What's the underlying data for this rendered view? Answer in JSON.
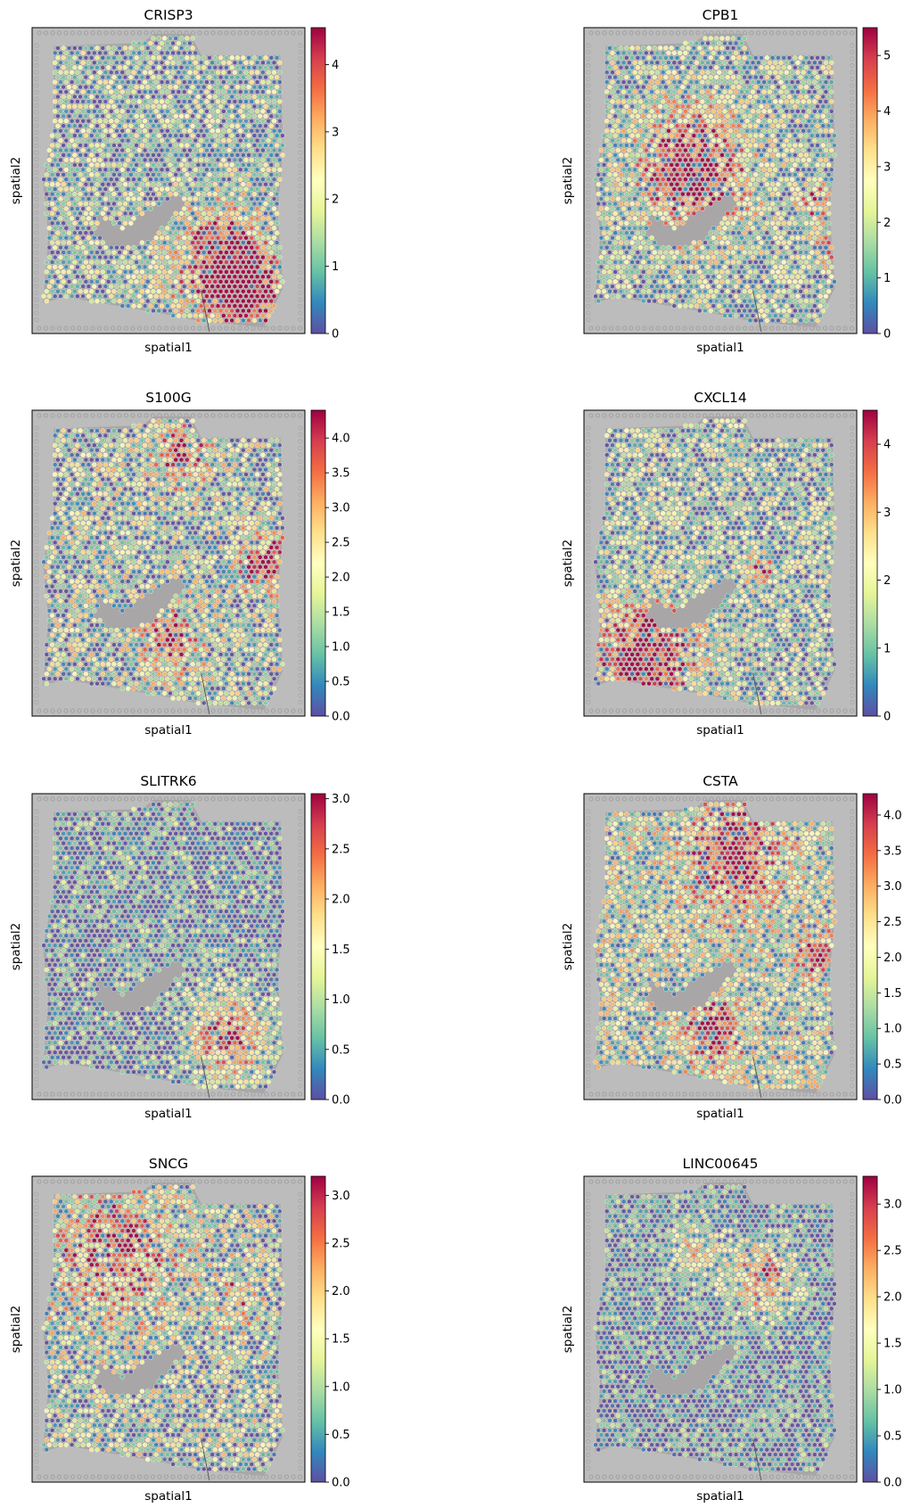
{
  "figure": {
    "colormap": "Spectral_r",
    "colormap_stops": [
      "#5e4fa2",
      "#3288bd",
      "#66c2a5",
      "#abdda4",
      "#e6f598",
      "#ffffbf",
      "#fee08b",
      "#fdae61",
      "#f46d43",
      "#d53e4f",
      "#9e0142"
    ],
    "background_color": "#bcbcbc",
    "spot_outline_color": "#f4f0d8"
  },
  "chart_data": [
    {
      "type": "heatmap",
      "title": "CRISP3",
      "xlabel": "spatial1",
      "ylabel": "spatial2",
      "colorbar_range": [
        0,
        4.55
      ],
      "colorbar_ticks": [
        "0",
        "1",
        "2",
        "3",
        "4"
      ],
      "colorbar_tick_values": [
        0,
        1,
        2,
        3,
        4
      ],
      "pattern": "high expression in lower-right tissue region; low-moderate elsewhere"
    },
    {
      "type": "heatmap",
      "title": "CPB1",
      "xlabel": "spatial1",
      "ylabel": "spatial2",
      "colorbar_range": [
        0,
        5.5
      ],
      "colorbar_ticks": [
        "0",
        "1",
        "2",
        "3",
        "4",
        "5"
      ],
      "colorbar_tick_values": [
        0,
        1,
        2,
        3,
        4,
        5
      ],
      "pattern": "high expression in upper-middle band and small right clusters"
    },
    {
      "type": "heatmap",
      "title": "S100G",
      "xlabel": "spatial1",
      "ylabel": "spatial2",
      "colorbar_range": [
        0,
        4.4
      ],
      "colorbar_ticks": [
        "0.0",
        "0.5",
        "1.0",
        "1.5",
        "2.0",
        "2.5",
        "3.0",
        "3.5",
        "4.0"
      ],
      "colorbar_tick_values": [
        0,
        0.5,
        1,
        1.5,
        2,
        2.5,
        3,
        3.5,
        4
      ],
      "pattern": "high expression in top-center, right-middle and center-lower patches"
    },
    {
      "type": "heatmap",
      "title": "CXCL14",
      "xlabel": "spatial1",
      "ylabel": "spatial2",
      "colorbar_range": [
        0,
        4.5
      ],
      "colorbar_ticks": [
        "0",
        "1",
        "2",
        "3",
        "4"
      ],
      "colorbar_tick_values": [
        0,
        1,
        2,
        3,
        4
      ],
      "pattern": "high expression in lower-left tissue region"
    },
    {
      "type": "heatmap",
      "title": "SLITRK6",
      "xlabel": "spatial1",
      "ylabel": "spatial2",
      "colorbar_range": [
        0,
        3.05
      ],
      "colorbar_ticks": [
        "0.0",
        "0.5",
        "1.0",
        "1.5",
        "2.0",
        "2.5",
        "3.0"
      ],
      "colorbar_tick_values": [
        0,
        0.5,
        1,
        1.5,
        2,
        2.5,
        3
      ],
      "pattern": "mostly low; moderate-high in lower-right region"
    },
    {
      "type": "heatmap",
      "title": "CSTA",
      "xlabel": "spatial1",
      "ylabel": "spatial2",
      "colorbar_range": [
        0,
        4.3
      ],
      "colorbar_ticks": [
        "0.0",
        "0.5",
        "1.0",
        "1.5",
        "2.0",
        "2.5",
        "3.0",
        "3.5",
        "4.0"
      ],
      "colorbar_tick_values": [
        0,
        0.5,
        1,
        1.5,
        2,
        2.5,
        3,
        3.5,
        4
      ],
      "pattern": "high expression in upper-center, right-middle and center-lower patches"
    },
    {
      "type": "heatmap",
      "title": "SNCG",
      "xlabel": "spatial1",
      "ylabel": "spatial2",
      "colorbar_range": [
        0,
        3.2
      ],
      "colorbar_ticks": [
        "0.0",
        "0.5",
        "1.0",
        "1.5",
        "2.0",
        "2.5",
        "3.0"
      ],
      "colorbar_tick_values": [
        0,
        0.5,
        1,
        1.5,
        2,
        2.5,
        3
      ],
      "pattern": "moderate-high in upper-left region; low in lower area"
    },
    {
      "type": "heatmap",
      "title": "LINC00645",
      "xlabel": "spatial1",
      "ylabel": "spatial2",
      "colorbar_range": [
        0,
        3.3
      ],
      "colorbar_ticks": [
        "0.0",
        "0.5",
        "1.0",
        "1.5",
        "2.0",
        "2.5",
        "3.0"
      ],
      "colorbar_tick_values": [
        0,
        0.5,
        1,
        1.5,
        2,
        2.5,
        3
      ],
      "pattern": "mostly low; high in upper-middle band"
    }
  ]
}
